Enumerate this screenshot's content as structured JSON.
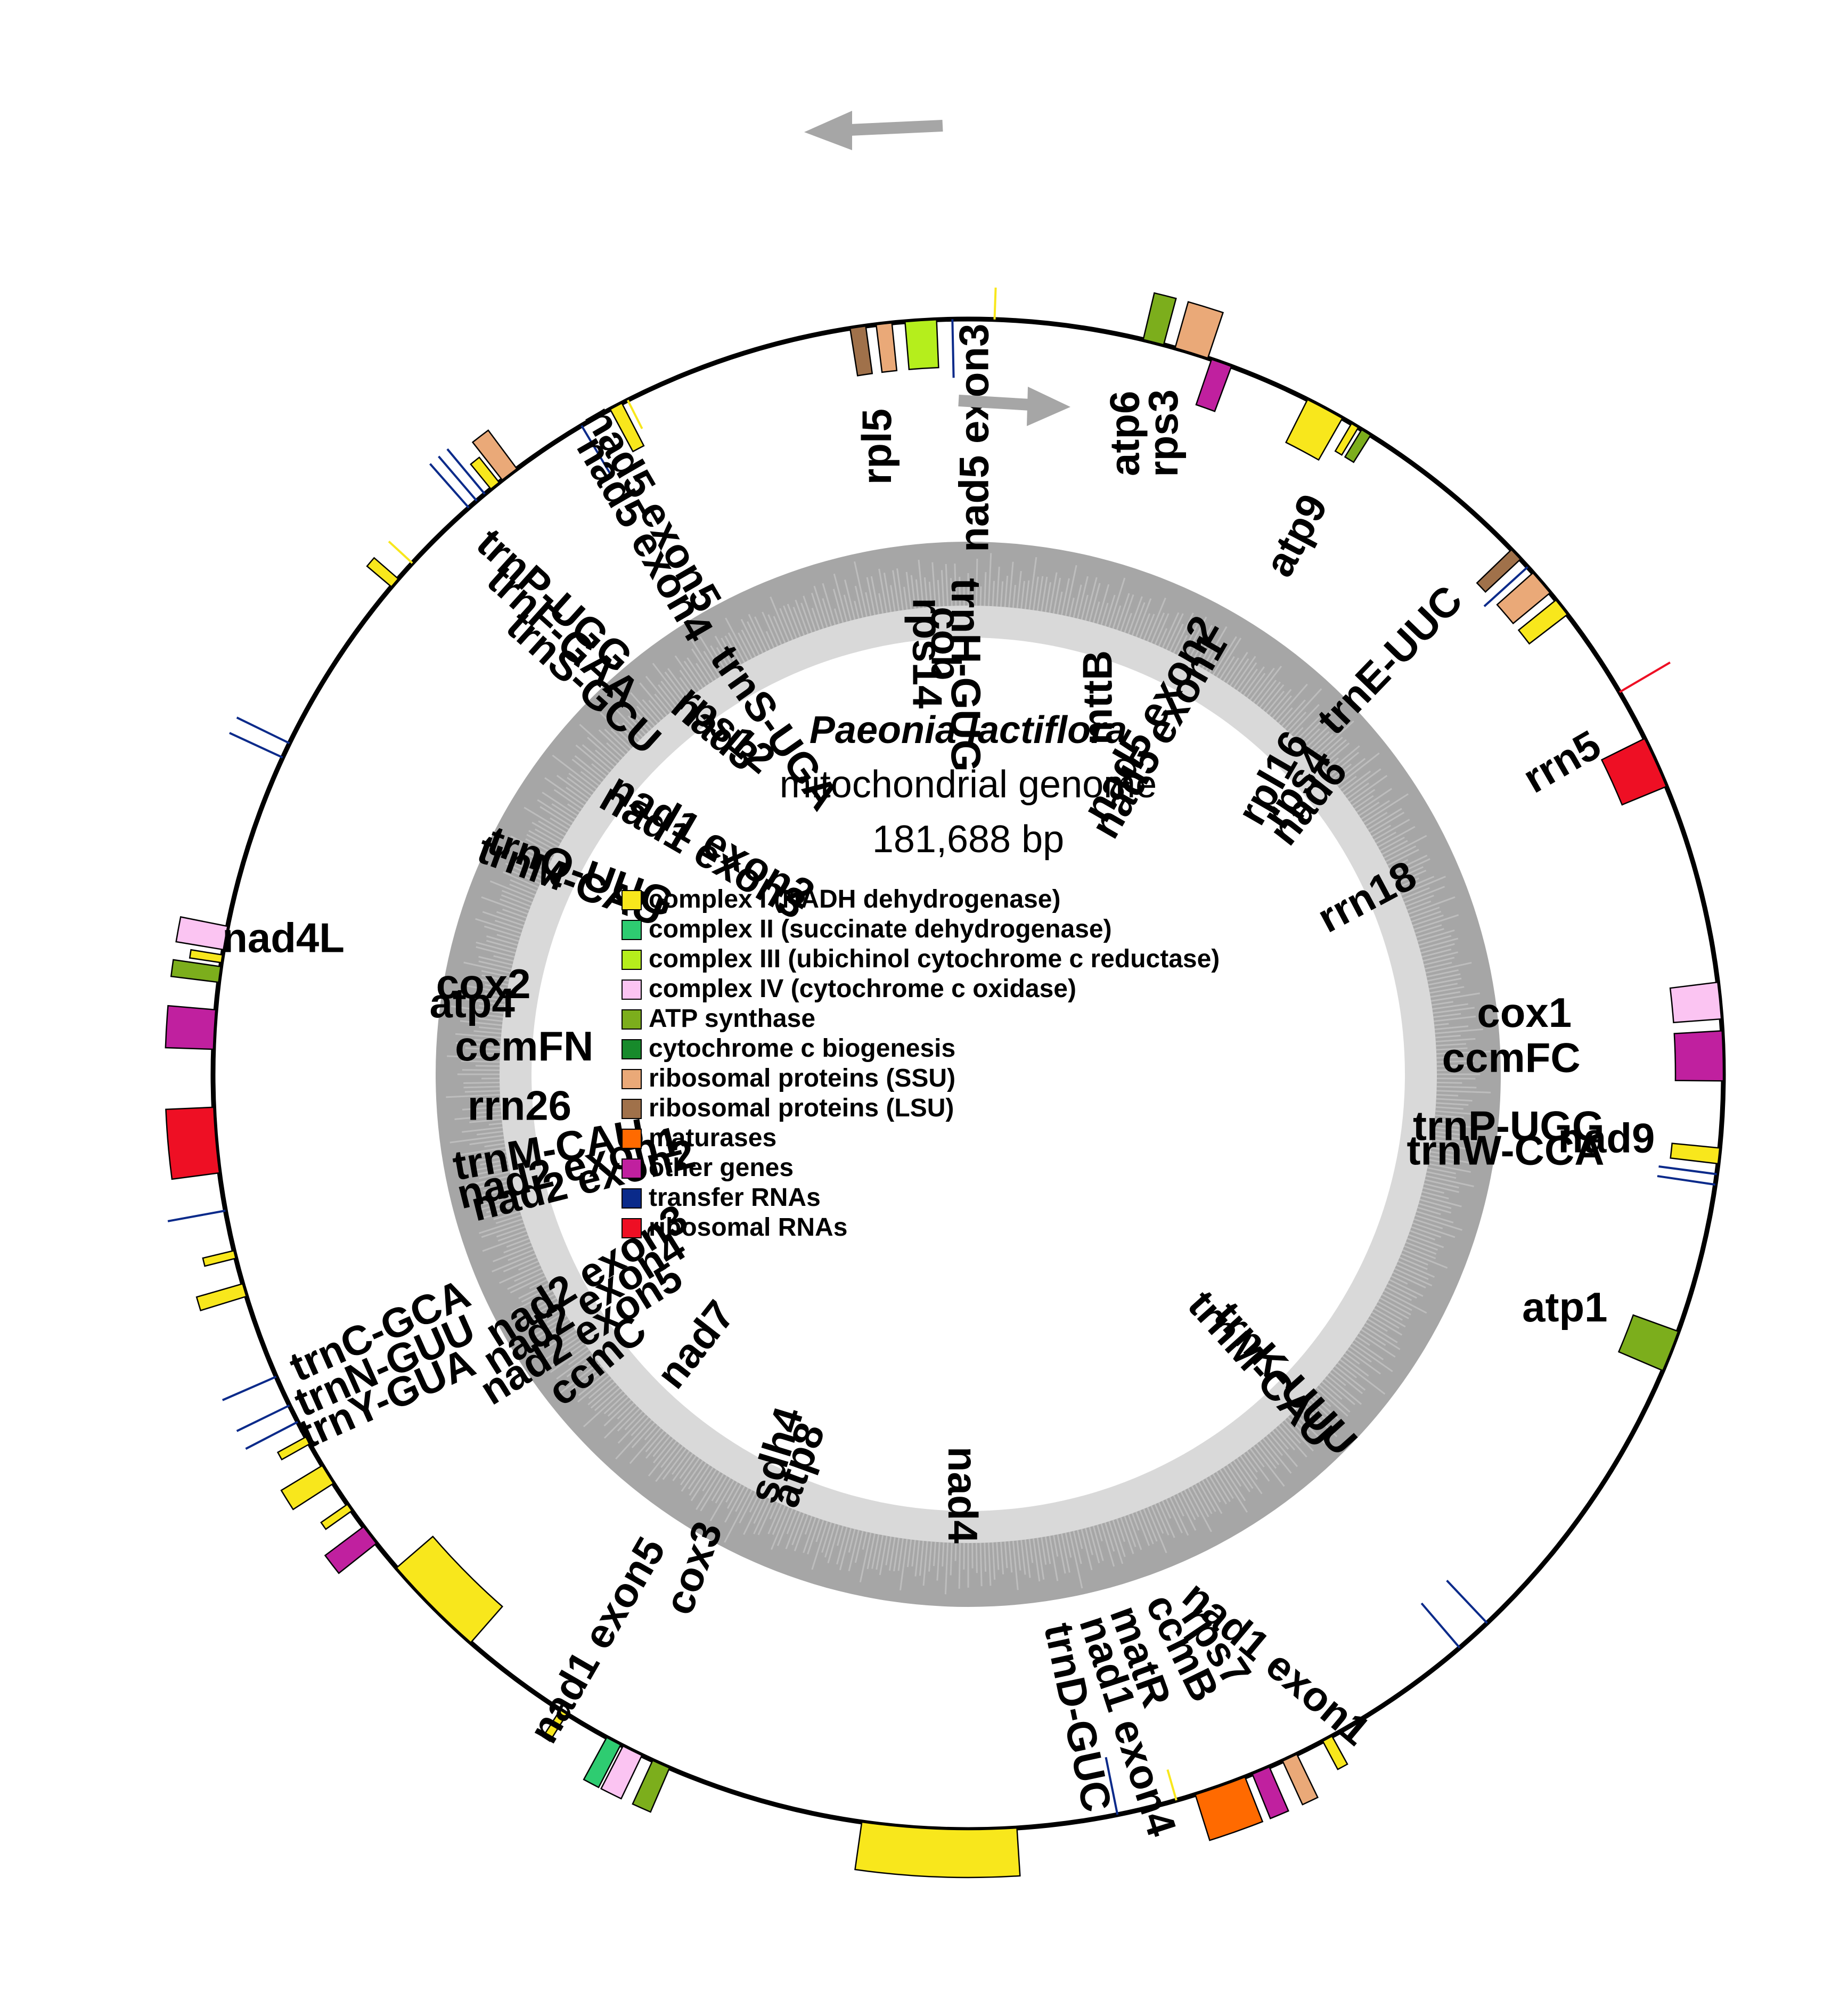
{
  "title": {
    "organism": "Paeonia lactiflora",
    "subtitle": "mitochondrial genome",
    "size": "181,688 bp"
  },
  "legend": [
    {
      "label": "complex I (NADH dehydrogenase)",
      "color": "#f8e71c"
    },
    {
      "label": "complex II (succinate dehydrogenase)",
      "color": "#2ecc71"
    },
    {
      "label": "complex III (ubichinol cytochrome c reductase)",
      "color": "#b5ee1c"
    },
    {
      "label": "complex IV (cytochrome c oxidase)",
      "color": "#fbc4f2"
    },
    {
      "label": "ATP synthase",
      "color": "#7cae1c"
    },
    {
      "label": "cytochrome c biogenesis",
      "color": "#178a2b"
    },
    {
      "label": "ribosomal proteins (SSU)",
      "color": "#eaa978"
    },
    {
      "label": "ribosomal proteins (LSU)",
      "color": "#a0714a"
    },
    {
      "label": "maturases",
      "color": "#ff6a00"
    },
    {
      "label": "other genes",
      "color": "#c0209f"
    },
    {
      "label": "transfer RNAs",
      "color": "#0a2a8a"
    },
    {
      "label": "ribosomal RNAs",
      "color": "#ee0f24"
    }
  ],
  "genes": [
    {
      "name": "nad5 exon3",
      "angle": 2,
      "span": 0.3,
      "side": "out",
      "cat": "complexI"
    },
    {
      "name": "atp6",
      "angle": 14.2,
      "span": 1.6,
      "side": "out",
      "cat": "atp"
    },
    {
      "name": "rps3",
      "angle": 17.2,
      "span": 2.6,
      "side": "out",
      "cat": "ssu"
    },
    {
      "name": "mttB",
      "angle": 19.6,
      "span": 1.6,
      "side": "in",
      "cat": "other"
    },
    {
      "name": "nad5 exon2",
      "angle": 28.2,
      "span": 3.0,
      "side": "in",
      "cat": "complexI"
    },
    {
      "name": "nad5 exon1",
      "angle": 30.8,
      "span": 0.6,
      "side": "in",
      "cat": "complexI"
    },
    {
      "name": "atp9",
      "angle": 31.8,
      "span": 0.8,
      "side": "in",
      "cat": "atp"
    },
    {
      "name": "trnE-UUC",
      "angle": 47.8,
      "span": 0.2,
      "side": "in",
      "cat": "trna"
    },
    {
      "name": "rpl16",
      "angle": 46.5,
      "span": 1.0,
      "side": "in",
      "cat": "lsu"
    },
    {
      "name": "rps4",
      "angle": 49.4,
      "span": 2.0,
      "side": "in",
      "cat": "ssu"
    },
    {
      "name": "nad6",
      "angle": 51.8,
      "span": 1.4,
      "side": "in",
      "cat": "complexI"
    },
    {
      "name": "rrn5",
      "angle": 59.6,
      "span": 0.2,
      "side": "out",
      "cat": "rrna"
    },
    {
      "name": "rrn18",
      "angle": 65.6,
      "span": 4.0,
      "side": "in",
      "cat": "rrna"
    },
    {
      "name": "cox1",
      "angle": 84.4,
      "span": 2.8,
      "side": "in",
      "cat": "complexIV"
    },
    {
      "name": "ccmFC",
      "angle": 88.6,
      "span": 3.8,
      "side": "in",
      "cat": "other"
    },
    {
      "name": "trnP-UGG",
      "angle": 97.6,
      "span": 0.2,
      "side": "in",
      "cat": "trna"
    },
    {
      "name": "nad9",
      "angle": 96.2,
      "span": 1.2,
      "side": "in",
      "cat": "complexI"
    },
    {
      "name": "trnW-CCA",
      "angle": 98.4,
      "span": 0.2,
      "side": "in",
      "cat": "trna"
    },
    {
      "name": "atp1",
      "angle": 111.5,
      "span": 3.2,
      "side": "in",
      "cat": "atp"
    },
    {
      "name": "trnK-UUU",
      "angle": 136.6,
      "span": 0.2,
      "side": "in",
      "cat": "trna"
    },
    {
      "name": "trnM-CAU",
      "angle": 139.4,
      "span": 0.2,
      "side": "in",
      "cat": "trna"
    },
    {
      "name": "nad1 exon1",
      "angle": 151.6,
      "span": 0.8,
      "side": "out",
      "cat": "complexI"
    },
    {
      "name": "rps7",
      "angle": 154.8,
      "span": 1.2,
      "side": "out",
      "cat": "ssu"
    },
    {
      "name": "ccmB",
      "angle": 157.2,
      "span": 1.4,
      "side": "out",
      "cat": "other"
    },
    {
      "name": "matR",
      "angle": 160.5,
      "span": 4.0,
      "side": "out",
      "cat": "maturase"
    },
    {
      "name": "nad1 exon4",
      "angle": 164.0,
      "span": 0.2,
      "side": "in",
      "cat": "complexI"
    },
    {
      "name": "trnD-GUC",
      "angle": 168.6,
      "span": 0.2,
      "side": "in",
      "cat": "trna"
    },
    {
      "name": "nad4",
      "angle": 182.2,
      "span": 11.8,
      "side": "out",
      "cat": "complexI"
    },
    {
      "name": "atp8",
      "angle": 204.0,
      "span": 1.4,
      "side": "out",
      "cat": "atp"
    },
    {
      "name": "cox3",
      "angle": 206.4,
      "span": 1.6,
      "side": "out",
      "cat": "complexIV"
    },
    {
      "name": "sdh4",
      "angle": 208.0,
      "span": 1.2,
      "side": "out",
      "cat": "complexII"
    },
    {
      "name": "nad1 exon5",
      "angle": 212.4,
      "span": 0.6,
      "side": "out",
      "cat": "complexI"
    },
    {
      "name": "nad7",
      "angle": 225.2,
      "span": 8.0,
      "side": "in",
      "cat": "complexI"
    },
    {
      "name": "ccmC",
      "angle": 232.4,
      "span": 1.6,
      "side": "out",
      "cat": "other"
    },
    {
      "name": "nad2 exon5",
      "angle": 235.0,
      "span": 0.6,
      "side": "out",
      "cat": "complexI"
    },
    {
      "name": "nad2 exon4",
      "angle": 238.0,
      "span": 1.6,
      "side": "out",
      "cat": "complexI"
    },
    {
      "name": "nad2 exon3",
      "angle": 241.0,
      "span": 0.6,
      "side": "out",
      "cat": "complexI"
    },
    {
      "name": "trnY-GUA",
      "angle": 242.6,
      "span": 0.2,
      "side": "out",
      "cat": "trna"
    },
    {
      "name": "trnN-GUU",
      "angle": 244.0,
      "span": 0.2,
      "side": "out",
      "cat": "trna"
    },
    {
      "name": "trnC-GCA",
      "angle": 246.4,
      "span": 0.2,
      "side": "out",
      "cat": "trna"
    },
    {
      "name": "nad2 exon2",
      "angle": 253.4,
      "span": 1.0,
      "side": "out",
      "cat": "complexI"
    },
    {
      "name": "nad2 exon1",
      "angle": 256.2,
      "span": 0.6,
      "side": "out",
      "cat": "complexI"
    },
    {
      "name": "trnM-CAU",
      "angle": 259.6,
      "span": 0.2,
      "side": "out",
      "cat": "trna"
    },
    {
      "name": "rrn26",
      "angle": 265.0,
      "span": 5.0,
      "side": "out",
      "cat": "rrna"
    },
    {
      "name": "ccmFN",
      "angle": 273.4,
      "span": 3.0,
      "side": "out",
      "cat": "other"
    },
    {
      "name": "atp4",
      "angle": 277.6,
      "span": 1.2,
      "side": "out",
      "cat": "atp"
    },
    {
      "name": "nad4L",
      "angle": 278.8,
      "span": 0.6,
      "side": "out",
      "cat": "complexI"
    },
    {
      "name": "cox2",
      "angle": 280.4,
      "span": 1.8,
      "side": "out",
      "cat": "complexIV"
    },
    {
      "name": "trnM-CAU",
      "angle": 294.8,
      "span": 0.2,
      "side": "out",
      "cat": "trna"
    },
    {
      "name": "trnQ-UUG",
      "angle": 296.0,
      "span": 0.2,
      "side": "out",
      "cat": "trna"
    },
    {
      "name": "nad1 exon3",
      "angle": 310.6,
      "span": 0.8,
      "side": "out",
      "cat": "complexI"
    },
    {
      "name": "nad1 exon2",
      "angle": 312.6,
      "span": 0.2,
      "side": "out",
      "cat": "complexI"
    },
    {
      "name": "trnS-GCU",
      "angle": 318.6,
      "span": 0.2,
      "side": "out",
      "cat": "trna"
    },
    {
      "name": "trnF-GAA",
      "angle": 319.4,
      "span": 0.2,
      "side": "out",
      "cat": "trna"
    },
    {
      "name": "trnP-UGG",
      "angle": 320.2,
      "span": 0.2,
      "side": "out",
      "cat": "trna"
    },
    {
      "name": "nad3",
      "angle": 321.2,
      "span": 0.8,
      "side": "out",
      "cat": "complexI"
    },
    {
      "name": "rps12",
      "angle": 322.6,
      "span": 1.4,
      "side": "out",
      "cat": "ssu"
    },
    {
      "name": "trnS-UGA",
      "angle": 329.2,
      "span": 0.2,
      "side": "in",
      "cat": "trna"
    },
    {
      "name": "nad5 exon4",
      "angle": 332.2,
      "span": 1.0,
      "side": "in",
      "cat": "complexI"
    },
    {
      "name": "nad5 exon5",
      "angle": 333.2,
      "span": 0.2,
      "side": "in",
      "cat": "complexI"
    },
    {
      "name": "rpl5",
      "angle": 351.6,
      "span": 1.2,
      "side": "in",
      "cat": "lsu"
    },
    {
      "name": "rps14",
      "angle": 353.6,
      "span": 1.2,
      "side": "in",
      "cat": "ssu"
    },
    {
      "name": "cob",
      "angle": 356.4,
      "span": 2.4,
      "side": "in",
      "cat": "complexIII"
    },
    {
      "name": "trnH-GUG",
      "angle": 358.8,
      "span": 0.2,
      "side": "in",
      "cat": "trna"
    }
  ],
  "labels": [
    {
      "text": "nad5 exon3",
      "angle": 0.8,
      "r": 1195,
      "rot": -90
    },
    {
      "text": "atp6",
      "angle": 14.0,
      "r": 1240,
      "rot": -90
    },
    {
      "text": "rps3",
      "angle": 17.2,
      "r": 1260,
      "rot": -90
    },
    {
      "text": "atp9",
      "angle": 31.6,
      "r": 1185,
      "rot": -62
    },
    {
      "text": "trnE-UUC",
      "angle": 45.8,
      "r": 1110,
      "rot": -46
    },
    {
      "text": "rrn5",
      "angle": 62.5,
      "r": 1260,
      "rot": -30
    },
    {
      "text": "nad9",
      "angle": 96.0,
      "r": 1205,
      "rot": 0
    },
    {
      "text": "atp1",
      "angle": 111.6,
      "r": 1205,
      "rot": 0
    },
    {
      "text": "nad1 exon1",
      "angle": 152.6,
      "r": 1250,
      "rot": 40
    },
    {
      "text": "rps7",
      "angle": 156.8,
      "r": 1170,
      "rot": 56
    },
    {
      "text": "ccmB",
      "angle": 159.8,
      "r": 1150,
      "rot": 64
    },
    {
      "text": "matR",
      "angle": 163.8,
      "r": 1140,
      "rot": 70
    },
    {
      "text": "nad1 exon4",
      "angle": 166.5,
      "r": 1260,
      "rot": 72
    },
    {
      "text": "trnD-GUC",
      "angle": 170.6,
      "r": 1225,
      "rot": 78
    },
    {
      "text": "nad4",
      "angle": 181.2,
      "r": 790,
      "rot": 90
    },
    {
      "text": "atp8",
      "angle": 203.2,
      "r": 800,
      "rot": -70
    },
    {
      "text": "sdh4",
      "angle": 206.4,
      "r": 800,
      "rot": -73
    },
    {
      "text": "cox3",
      "angle": 208.8,
      "r": 1060,
      "rot": -70
    },
    {
      "text": "nad1 exon5",
      "angle": 213.0,
      "r": 1270,
      "rot": -60
    },
    {
      "text": "nad7",
      "angle": 224.8,
      "r": 720,
      "rot": -52
    },
    {
      "text": "ccmC",
      "angle": 232.0,
      "r": 880,
      "rot": -40
    },
    {
      "text": "nad2 exon5",
      "angle": 235.8,
      "r": 875,
      "rot": -32
    },
    {
      "text": "nad2 exon4",
      "angle": 238.8,
      "r": 840,
      "rot": -32
    },
    {
      "text": "nad2 exon3",
      "angle": 241.8,
      "r": 810,
      "rot": -32
    },
    {
      "text": "trnY-GUA",
      "angle": 240.6,
      "r": 1250,
      "rot": -24
    },
    {
      "text": "trnN-GUU",
      "angle": 243.2,
      "r": 1225,
      "rot": -24
    },
    {
      "text": "trnC-GCA",
      "angle": 246.2,
      "r": 1205,
      "rot": -24
    },
    {
      "text": "nad2 exon2",
      "angle": 254.2,
      "r": 750,
      "rot": -14
    },
    {
      "text": "nad2 exon1",
      "angle": 256.4,
      "r": 770,
      "rot": -14
    },
    {
      "text": "trnM-CAU",
      "angle": 259.4,
      "r": 800,
      "rot": -10
    },
    {
      "text": "rrn26",
      "angle": 265.6,
      "r": 845,
      "rot": 0
    },
    {
      "text": "ccmFN",
      "angle": 273.2,
      "r": 835,
      "rot": 0
    },
    {
      "text": "atp4",
      "angle": 277.8,
      "r": 940,
      "rot": 0
    },
    {
      "text": "nad4L",
      "angle": 281.0,
      "r": 1310,
      "rot": 0
    },
    {
      "text": "cox2",
      "angle": 280.2,
      "r": 925,
      "rot": 0
    },
    {
      "text": "trnM-CAU",
      "angle": 295.6,
      "r": 830,
      "rot": 20
    },
    {
      "text": "trnQ-UUG",
      "angle": 297.2,
      "r": 820,
      "rot": 20
    },
    {
      "text": "nad1 exon3",
      "angle": 309.6,
      "r": 650,
      "rot": 30
    },
    {
      "text": "nad1 exon2",
      "angle": 311.8,
      "r": 650,
      "rot": 30
    },
    {
      "text": "trnS-GCU",
      "angle": 315.2,
      "r": 1030,
      "rot": 42
    },
    {
      "text": "trnF-GAA",
      "angle": 317.0,
      "r": 1120,
      "rot": 42
    },
    {
      "text": "trnP-UGG",
      "angle": 318.6,
      "r": 1180,
      "rot": 42
    },
    {
      "text": "nad3",
      "angle": 323.2,
      "r": 800,
      "rot": 40
    },
    {
      "text": "rps12",
      "angle": 324.6,
      "r": 790,
      "rot": 40
    },
    {
      "text": "trnS-UGA",
      "angle": 330.4,
      "r": 745,
      "rot": 55
    },
    {
      "text": "nad5 exon4",
      "angle": 328.6,
      "r": 1175,
      "rot": 60
    },
    {
      "text": "nad5 exon5",
      "angle": 330.6,
      "r": 1215,
      "rot": 60
    },
    {
      "text": "rpl5",
      "angle": 352.0,
      "r": 1190,
      "rot": -90
    },
    {
      "text": "rps14",
      "angle": 354.0,
      "r": 795,
      "rot": 90
    },
    {
      "text": "cob",
      "angle": 356.6,
      "r": 810,
      "rot": 90
    },
    {
      "text": "trnH-GUG",
      "angle": 359.2,
      "r": 750,
      "rot": 90
    },
    {
      "text": "mttB",
      "angle": 19.4,
      "r": 750,
      "rot": -90
    },
    {
      "text": "nad5 exon2",
      "angle": 27.6,
      "r": 750,
      "rot": -60
    },
    {
      "text": "nad5 exon1",
      "angle": 29.8,
      "r": 730,
      "rot": -60
    },
    {
      "text": "rpl16",
      "angle": 46.2,
      "r": 800,
      "rot": -60
    },
    {
      "text": "rps4",
      "angle": 49.2,
      "r": 820,
      "rot": -56
    },
    {
      "text": "nad6",
      "angle": 51.6,
      "r": 820,
      "rot": -52
    },
    {
      "text": "rrn18",
      "angle": 66.4,
      "r": 820,
      "rot": -28
    },
    {
      "text": "cox1",
      "angle": 84.0,
      "r": 1050,
      "rot": 0
    },
    {
      "text": "ccmFC",
      "angle": 88.6,
      "r": 1020,
      "rot": 0
    },
    {
      "text": "trnP-UGG",
      "angle": 95.8,
      "r": 1020,
      "rot": 0
    },
    {
      "text": "trnW-CCA",
      "angle": 98.4,
      "r": 1020,
      "rot": 0
    },
    {
      "text": "trnK-UUU",
      "angle": 134.2,
      "r": 825,
      "rot": 48
    },
    {
      "text": "trnM-CAU",
      "angle": 135.6,
      "r": 780,
      "rot": 48
    }
  ],
  "gc_content": {
    "values": [
      0.46,
      0.44,
      0.47,
      0.43,
      0.45,
      0.48,
      0.44,
      0.46,
      0.42,
      0.45,
      0.47,
      0.44,
      0.46,
      0.43,
      0.45,
      0.49,
      0.44,
      0.46,
      0.45,
      0.43,
      0.47,
      0.45,
      0.44,
      0.46,
      0.48,
      0.43,
      0.45,
      0.46,
      0.44,
      0.47,
      0.45,
      0.43,
      0.46,
      0.44,
      0.45,
      0.48,
      0.44,
      0.46,
      0.45,
      0.43
    ]
  }
}
